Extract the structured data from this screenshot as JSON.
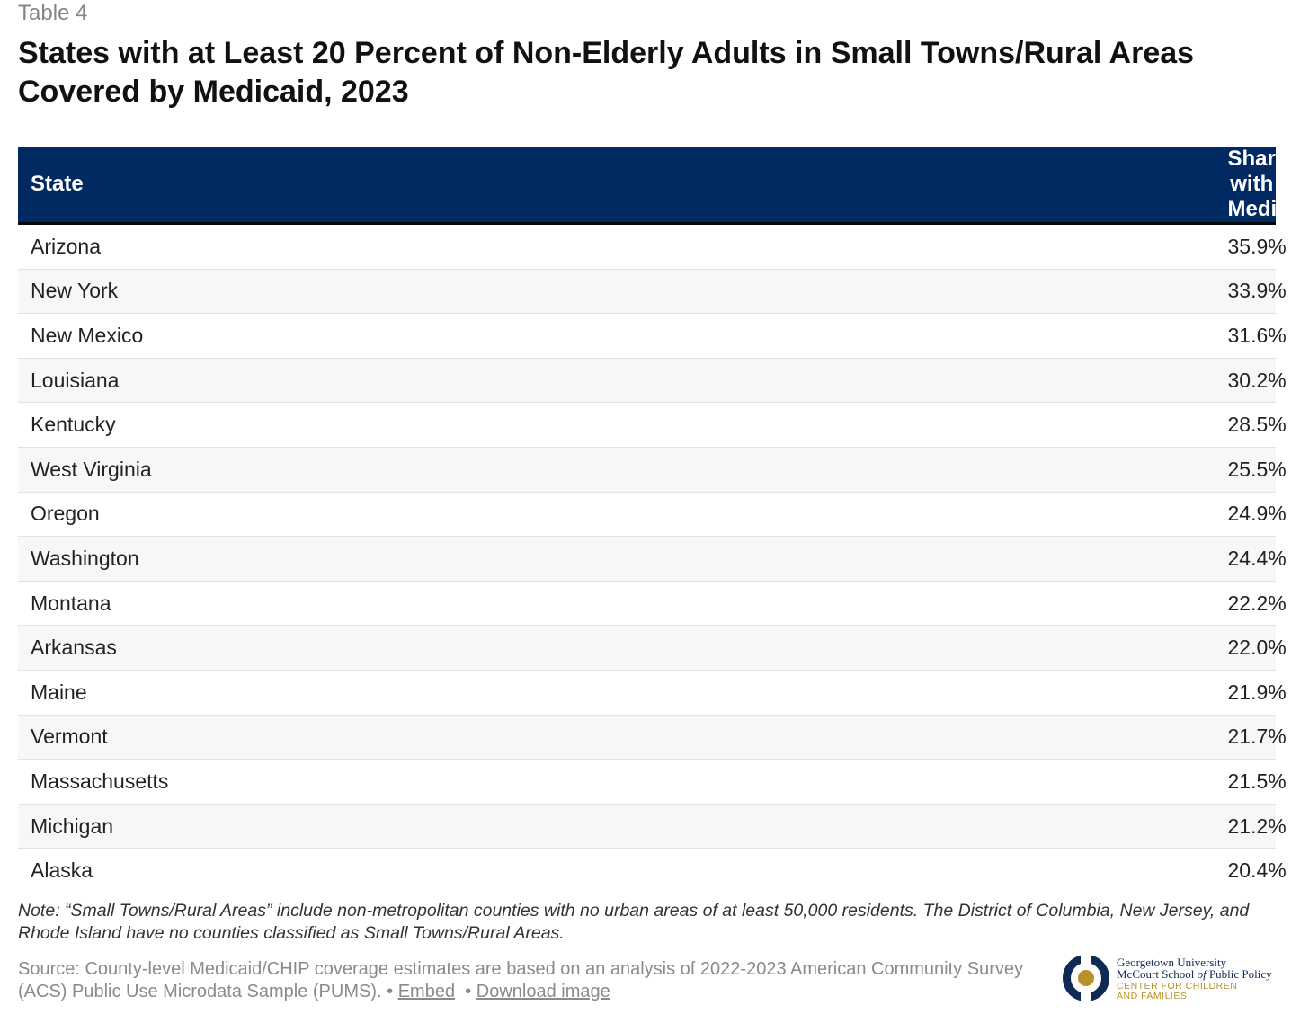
{
  "table_label": "Table 4",
  "title": "States with at Least 20 Percent of Non-Elderly Adults in Small Towns/Rural Areas Covered by Medicaid, 2023",
  "columns": [
    "State",
    "Share with Medicaid"
  ],
  "rows": [
    {
      "state": "Arizona",
      "share": "35.9%"
    },
    {
      "state": "New York",
      "share": "33.9%"
    },
    {
      "state": "New Mexico",
      "share": "31.6%"
    },
    {
      "state": "Louisiana",
      "share": "30.2%"
    },
    {
      "state": "Kentucky",
      "share": "28.5%"
    },
    {
      "state": "West Virginia",
      "share": "25.5%"
    },
    {
      "state": "Oregon",
      "share": "24.9%"
    },
    {
      "state": "Washington",
      "share": "24.4%"
    },
    {
      "state": "Montana",
      "share": "22.2%"
    },
    {
      "state": "Arkansas",
      "share": "22.0%"
    },
    {
      "state": "Maine",
      "share": "21.9%"
    },
    {
      "state": "Vermont",
      "share": "21.7%"
    },
    {
      "state": "Massachusetts",
      "share": "21.5%"
    },
    {
      "state": "Michigan",
      "share": "21.2%"
    },
    {
      "state": "Alaska",
      "share": "20.4%"
    }
  ],
  "chart_data": {
    "type": "table",
    "title": "States with at Least 20 Percent of Non-Elderly Adults in Small Towns/Rural Areas Covered by Medicaid, 2023",
    "columns": [
      "State",
      "Share with Medicaid"
    ],
    "categories": [
      "Arizona",
      "New York",
      "New Mexico",
      "Louisiana",
      "Kentucky",
      "West Virginia",
      "Oregon",
      "Washington",
      "Montana",
      "Arkansas",
      "Maine",
      "Vermont",
      "Massachusetts",
      "Michigan",
      "Alaska"
    ],
    "values": [
      35.9,
      33.9,
      31.6,
      30.2,
      28.5,
      25.5,
      24.9,
      24.4,
      22.2,
      22.0,
      21.9,
      21.7,
      21.5,
      21.2,
      20.4
    ]
  },
  "note": "Note: “Small Towns/Rural Areas” include non-metropolitan counties with no urban areas of at least 50,000 residents. The District of Columbia, New Jersey, and Rhode Island have no counties classified as Small Towns/Rural Areas.",
  "source": {
    "text": "Source: County-level Medicaid/CHIP coverage estimates are based on an analysis of 2022-2023 American Community Survey (ACS) Public Use Microdata Sample (PUMS).",
    "separator": "•",
    "embed_label": "Embed",
    "download_label": "Download image"
  },
  "logo": {
    "line1": "Georgetown University",
    "line2_pre": "McCourt School ",
    "line2_of": "of",
    "line2_post": " Public Policy",
    "line3": "CENTER FOR CHILDREN",
    "line4": "AND FAMILIES",
    "navy": "#0f2a55",
    "gold": "#b8912a"
  },
  "colors": {
    "header_bg": "#012a62",
    "stripe": "#f7f7f7"
  }
}
